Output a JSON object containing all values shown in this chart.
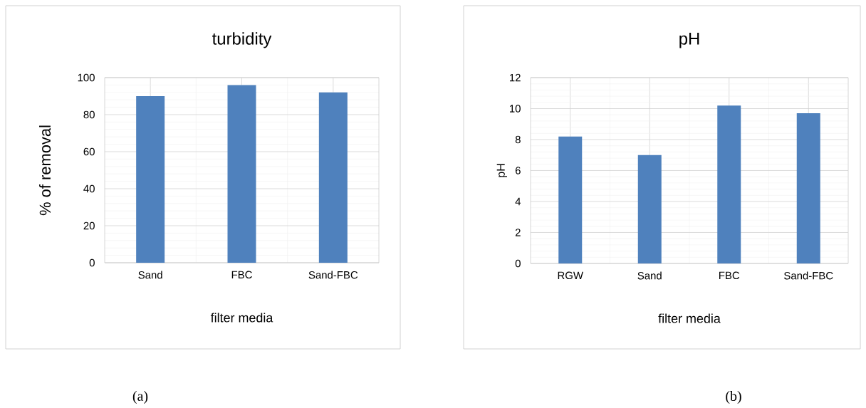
{
  "chart_data": [
    {
      "type": "bar",
      "title": "turbidity",
      "xlabel": "filter media",
      "ylabel": "% of removal",
      "categories": [
        "Sand",
        "FBC",
        "Sand-FBC"
      ],
      "values": [
        90,
        96,
        92
      ],
      "color": "#4f81bd",
      "ylim": [
        0,
        100
      ],
      "yticks": [
        0,
        20,
        40,
        60,
        80,
        100
      ],
      "grid": true,
      "annotations": [
        "(a)"
      ]
    },
    {
      "type": "bar",
      "title": "pH",
      "xlabel": "filter media",
      "ylabel": "pH",
      "categories": [
        "RGW",
        "Sand",
        "FBC",
        "Sand-FBC"
      ],
      "values": [
        8.2,
        7.0,
        10.2,
        9.7
      ],
      "color": "#4f81bd",
      "ylim": [
        0,
        12
      ],
      "yticks": [
        0,
        2,
        4,
        6,
        8,
        10,
        12
      ],
      "grid": true,
      "annotations": [
        "(b)"
      ]
    }
  ]
}
